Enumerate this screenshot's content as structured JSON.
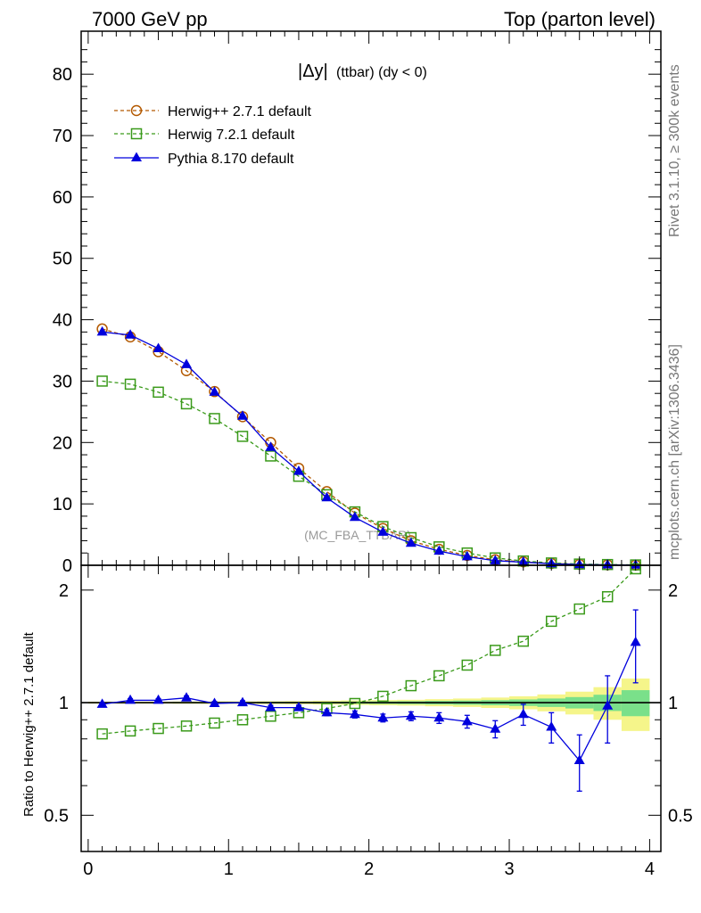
{
  "header": {
    "left": "7000 GeV pp",
    "right": "Top (parton level)"
  },
  "side_labels": {
    "rivet": "Rivet 3.1.10, ≥ 300k events",
    "mcplots": "mcplots.cern.ch [arXiv:1306.3436]"
  },
  "plot_title": {
    "main": "|Δy|",
    "sub": "(ttbar)  (dy < 0)"
  },
  "watermark": "(MC_FBA_TTBAR)",
  "colors": {
    "herwigpp": "#b35900",
    "herwig7": "#3a9a1a",
    "pythia": "#0000dd",
    "band_inner": "#7ae08a",
    "band_outer": "#f5f58a"
  },
  "chart_data": [
    {
      "type": "line",
      "panel": "main",
      "title": "|Δy| (ttbar)  (dy < 0)",
      "xlabel": "",
      "ylabel": "",
      "xlim": [
        -0.05,
        4.08
      ],
      "ylim": [
        0,
        87
      ],
      "yticks": [
        0,
        10,
        20,
        30,
        40,
        50,
        60,
        70,
        80
      ],
      "legend_placement": "top-left",
      "x": [
        0.1,
        0.3,
        0.5,
        0.7,
        0.9,
        1.1,
        1.3,
        1.5,
        1.7,
        1.9,
        2.1,
        2.3,
        2.5,
        2.7,
        2.9,
        3.1,
        3.3,
        3.5,
        3.7,
        3.9
      ],
      "series": [
        {
          "name": "Herwig++ 2.7.1 default",
          "marker": "open-circle",
          "dash": true,
          "values": [
            38.5,
            37.2,
            34.8,
            31.7,
            28.3,
            24.2,
            20.0,
            15.8,
            12.0,
            8.5,
            6.0,
            4.0,
            2.6,
            1.6,
            0.9,
            0.55,
            0.3,
            0.15,
            0.07,
            0.03
          ]
        },
        {
          "name": "Herwig 7.2.1 default",
          "marker": "open-square",
          "dash": true,
          "values": [
            30.0,
            29.5,
            28.2,
            26.3,
            23.9,
            21.0,
            17.8,
            14.5,
            11.5,
            8.7,
            6.3,
            4.5,
            3.0,
            2.0,
            1.2,
            0.7,
            0.38,
            0.2,
            0.12,
            0.06
          ]
        },
        {
          "name": "Pythia 8.170 default",
          "marker": "filled-triangle",
          "dash": false,
          "values": [
            38.0,
            37.5,
            35.3,
            32.7,
            28.2,
            24.3,
            19.2,
            15.3,
            11.0,
            7.8,
            5.4,
            3.6,
            2.3,
            1.4,
            0.75,
            0.5,
            0.25,
            0.1,
            0.07,
            0.04
          ]
        }
      ]
    },
    {
      "type": "line",
      "panel": "ratio",
      "ylabel": "Ratio to Herwig++ 2.7.1 default",
      "xlabel": "",
      "xlim": [
        -0.05,
        4.08
      ],
      "ylim": [
        0.4,
        2.33
      ],
      "ytick_labels": [
        "0.5",
        "1",
        "2"
      ],
      "ytick_values": [
        0.5,
        1,
        2
      ],
      "xtick_labels": [
        "0",
        "1",
        "2",
        "3",
        "4"
      ],
      "xtick_values": [
        0,
        1,
        2,
        3,
        4
      ],
      "x": [
        0.1,
        0.3,
        0.5,
        0.7,
        0.9,
        1.1,
        1.3,
        1.5,
        1.7,
        1.9,
        2.1,
        2.3,
        2.5,
        2.7,
        2.9,
        3.1,
        3.3,
        3.5,
        3.7,
        3.9
      ],
      "series": [
        {
          "name": "Herwig 7.2.1 default",
          "marker": "open-square",
          "dash": true,
          "values": [
            0.825,
            0.84,
            0.853,
            0.866,
            0.882,
            0.9,
            0.92,
            0.94,
            0.965,
            0.995,
            1.04,
            1.11,
            1.18,
            1.26,
            1.38,
            1.46,
            1.65,
            1.78,
            1.92,
            2.28
          ]
        },
        {
          "name": "Pythia 8.170 default",
          "marker": "filled-triangle",
          "dash": false,
          "values": [
            0.99,
            1.015,
            1.015,
            1.03,
            0.995,
            1.0,
            0.97,
            0.97,
            0.94,
            0.93,
            0.91,
            0.92,
            0.91,
            0.89,
            0.85,
            0.93,
            0.86,
            0.7,
            0.98,
            1.45
          ],
          "errors": [
            0.01,
            0.01,
            0.01,
            0.012,
            0.012,
            0.012,
            0.014,
            0.015,
            0.017,
            0.02,
            0.022,
            0.025,
            0.03,
            0.035,
            0.045,
            0.06,
            0.08,
            0.12,
            0.2,
            0.32
          ]
        }
      ],
      "bands": {
        "x_edges": [
          0.0,
          0.2,
          0.4,
          0.6,
          0.8,
          1.0,
          1.2,
          1.4,
          1.6,
          1.8,
          2.0,
          2.2,
          2.4,
          2.6,
          2.8,
          3.0,
          3.2,
          3.4,
          3.6,
          3.8,
          4.0
        ],
        "inner_halfwidth": [
          0.003,
          0.003,
          0.003,
          0.004,
          0.004,
          0.004,
          0.005,
          0.005,
          0.006,
          0.007,
          0.008,
          0.009,
          0.011,
          0.013,
          0.016,
          0.02,
          0.026,
          0.035,
          0.05,
          0.08
        ],
        "outer_halfwidth": [
          0.006,
          0.006,
          0.006,
          0.007,
          0.008,
          0.008,
          0.009,
          0.01,
          0.012,
          0.014,
          0.016,
          0.018,
          0.022,
          0.026,
          0.032,
          0.04,
          0.052,
          0.07,
          0.1,
          0.16
        ]
      }
    }
  ]
}
